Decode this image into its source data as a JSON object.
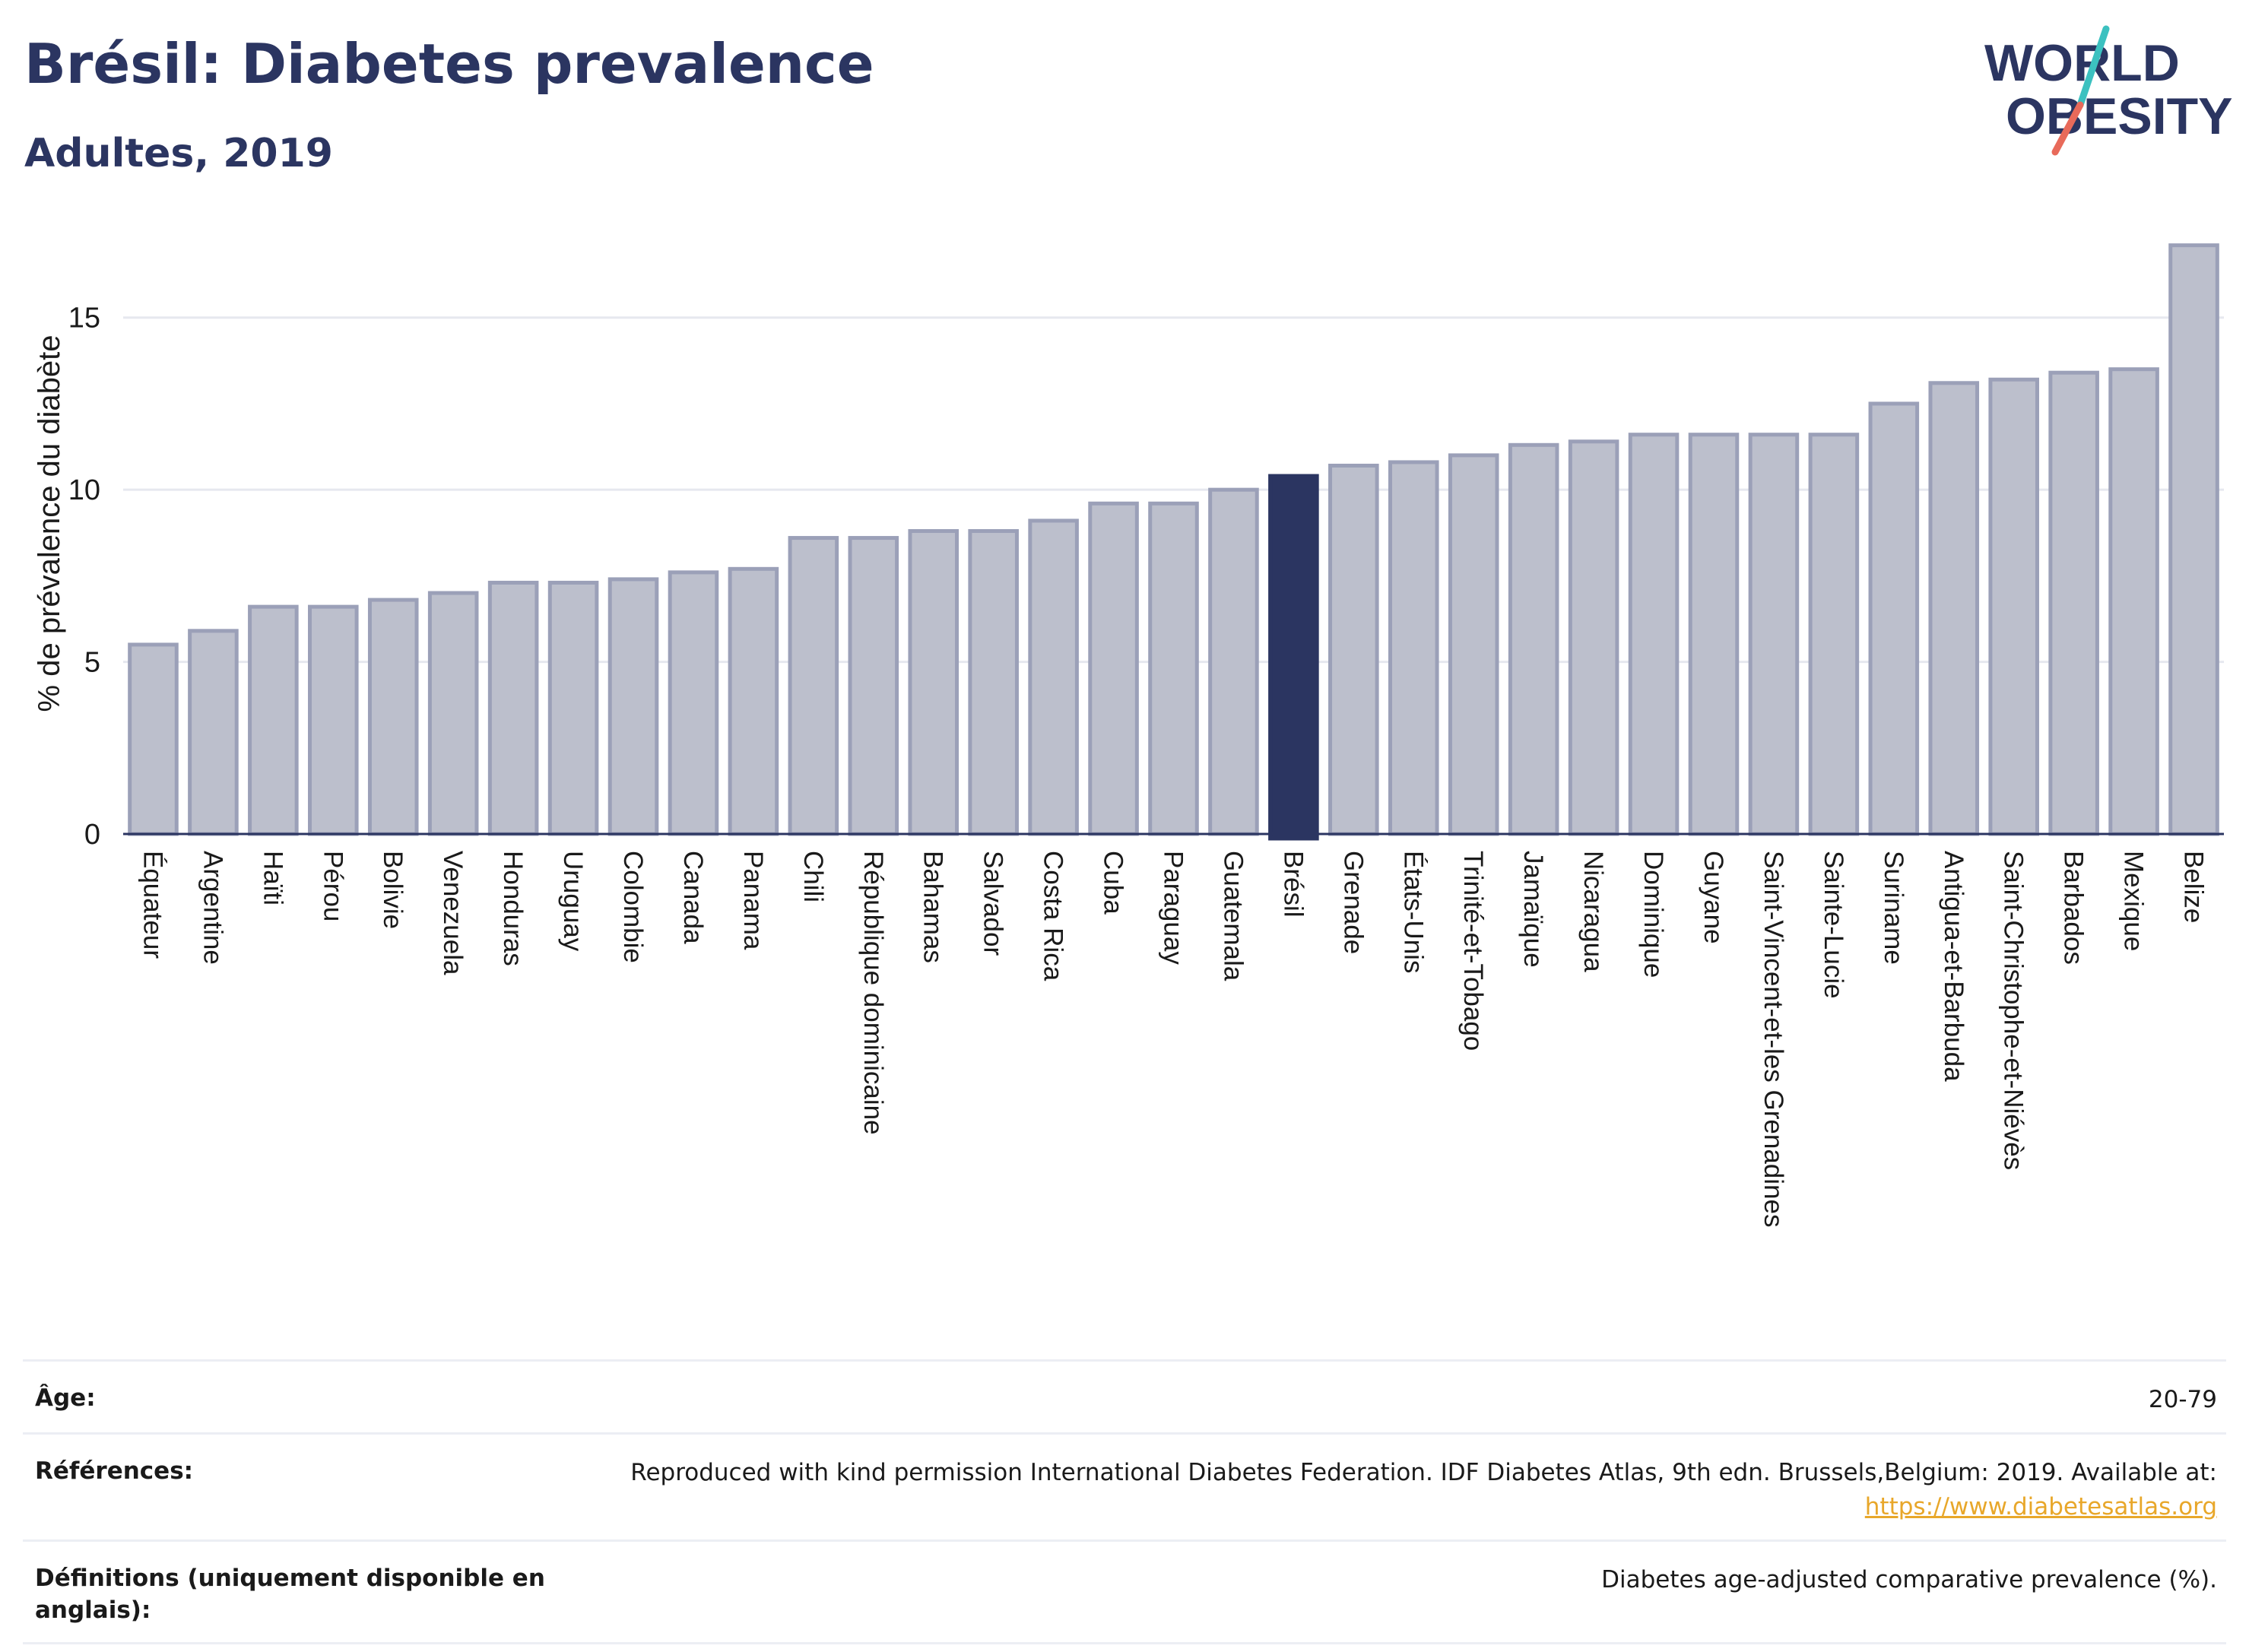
{
  "header": {
    "title": "Brésil: Diabetes prevalence",
    "subtitle": "Adultes, 2019"
  },
  "logo": {
    "line1": "WORLD",
    "line2": "OBESITY"
  },
  "colors": {
    "bar_fill": "#bcbfcc",
    "bar_stroke": "#9ba0b8",
    "highlight": "#2b3561",
    "grid": "#e6e8ef",
    "logo_teal": "#3cc1c0",
    "logo_coral": "#e86a5a",
    "link": "#e8a72a"
  },
  "chart_data": {
    "type": "bar",
    "ylabel": "% de prévalence du diabète",
    "xlabel": "",
    "ylim": [
      0,
      17.6
    ],
    "yticks": [
      0,
      5,
      10,
      15
    ],
    "grid": true,
    "highlight_category": "Brésil",
    "categories": [
      "Équateur",
      "Argentine",
      "Haïti",
      "Pérou",
      "Bolivie",
      "Venezuela",
      "Honduras",
      "Uruguay",
      "Colombie",
      "Canada",
      "Panama",
      "Chili",
      "République dominicaine",
      "Bahamas",
      "Salvador",
      "Costa Rica",
      "Cuba",
      "Paraguay",
      "Guatemala",
      "Brésil",
      "Grenade",
      "États-Unis",
      "Trinité-et-Tobago",
      "Jamaïque",
      "Nicaragua",
      "Dominique",
      "Guyane",
      "Saint-Vincent-et-les Grenadines",
      "Sainte-Lucie",
      "Suriname",
      "Antigua-et-Barbuda",
      "Saint-Christophe-et-Niévès",
      "Barbados",
      "Mexique",
      "Belize"
    ],
    "values": [
      5.5,
      5.9,
      6.6,
      6.6,
      6.8,
      7.0,
      7.3,
      7.3,
      7.4,
      7.6,
      7.7,
      8.6,
      8.6,
      8.8,
      8.8,
      9.1,
      9.6,
      9.6,
      10.0,
      10.4,
      10.7,
      10.8,
      11.0,
      11.3,
      11.4,
      11.6,
      11.6,
      11.6,
      11.6,
      12.5,
      13.1,
      13.2,
      13.4,
      13.5,
      17.1
    ]
  },
  "info": {
    "age_label": "Âge:",
    "age_value": "20-79",
    "refs_label": "Références:",
    "refs_value": "Reproduced with kind permission International Diabetes Federation. IDF Diabetes Atlas, 9th edn. Brussels,Belgium: 2019. Available at:",
    "refs_link": "https://www.diabetesatlas.org",
    "defs_label": "Définitions (uniquement disponible en anglais):",
    "defs_value": "Diabetes age-adjusted comparative prevalence (%)."
  }
}
